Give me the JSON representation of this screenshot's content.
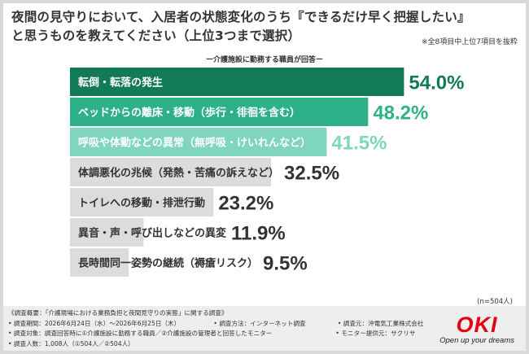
{
  "header": {
    "title_line1": "夜間の見守りにおいて、入居者の状態変化のうち『できるだけ早く把握したい』",
    "title_line2": "と思うものを教えてください（上位3つまで選択）",
    "note": "※全8項目中上位7項目を抜粋",
    "subtitle": "ー介護施設に勤務する職員が回答ー"
  },
  "chart_data": {
    "type": "bar",
    "orientation": "horizontal",
    "unit": "%",
    "xlim": [
      0,
      60
    ],
    "categories": [
      "転倒・転落の発生",
      "ベッドからの離床・移動（歩行・徘徊を含む）",
      "呼吸や体動などの異常（無呼吸・けいれんなど）",
      "体調悪化の兆候（発熱・苦痛の訴えなど）",
      "トイレへの移動・排泄行動",
      "異音・声・呼び出しなどの異変",
      "長時間同一姿勢の継続（褥瘡リスク）"
    ],
    "values": [
      54.0,
      48.2,
      41.5,
      32.5,
      23.2,
      11.9,
      9.5
    ],
    "value_labels": [
      "54.0%",
      "48.2%",
      "41.5%",
      "32.5%",
      "23.2%",
      "11.9%",
      "9.5%"
    ],
    "colors": [
      "#127a56",
      "#2eb088",
      "#7fd5bd",
      "#dcdcdc",
      "#dcdcdc",
      "#dcdcdc",
      "#dcdcdc"
    ],
    "label_colors": [
      "#ffffff",
      "#ffffff",
      "#ffffff",
      "#333333",
      "#333333",
      "#333333",
      "#333333"
    ],
    "value_colors": [
      "#127a56",
      "#2eb088",
      "#7fd5bd",
      "#333333",
      "#333333",
      "#333333",
      "#333333"
    ],
    "n_note": "(n=504人)"
  },
  "footer": {
    "line1": "《調査概要：「介護現場における業務負担と夜間見守りの実態」に関する調査》",
    "period": "• 調査期間：2026年6月24日（水）〜2026年6月25日（木）",
    "method": "• 調査方法：インターネット調査",
    "org": "• 調査元：沖電気工業株式会社",
    "target": "• 調査対象：調査回答時に①介護施設に勤務する職員／②介護施設の管理者と回答したモニター",
    "provider": "• モニター提供元：サクリサ",
    "count": "• 調査人数：1,008人（①504人／②504人）"
  },
  "logo": {
    "mark": "OKI",
    "tagline": "Open up your dreams"
  }
}
